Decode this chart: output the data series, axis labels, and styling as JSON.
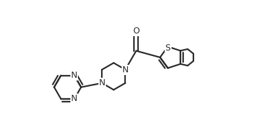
{
  "bg_color": "#ffffff",
  "line_color": "#2a2a2a",
  "line_width": 1.6,
  "fig_width": 3.79,
  "fig_height": 1.92,
  "dpi": 100,
  "xlim": [
    0.0,
    7.8
  ],
  "ylim": [
    -3.2,
    2.8
  ]
}
